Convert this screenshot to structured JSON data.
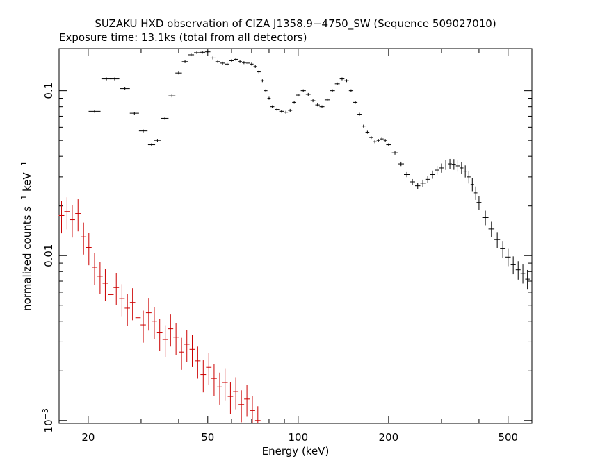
{
  "chart_data": {
    "type": "scatter",
    "title": "SUZAKU HXD observation of CIZA J1358.9−4750_SW (Sequence 509027010)",
    "subtitle": "Exposure time: 13.1ks (total from all detectors)",
    "xlabel": "Energy (keV)",
    "ylabel_parts": [
      "normalized counts s",
      "−1",
      " keV",
      "−1"
    ],
    "x_scale": "log",
    "y_scale": "log",
    "xlim": [
      16,
      600
    ],
    "ylim": [
      0.00096,
      0.18
    ],
    "x_ticks": [
      20,
      50,
      100,
      200,
      500
    ],
    "x_tick_labels": [
      "20",
      "50",
      "100",
      "200",
      "500"
    ],
    "y_ticks": [
      0.001,
      0.01,
      0.1
    ],
    "y_tick_labels": [
      {
        "base": "10",
        "exp": "−3"
      },
      {
        "base": "0.01",
        "exp": ""
      },
      {
        "base": "0.1",
        "exp": ""
      }
    ],
    "grid": false,
    "series": [
      {
        "color": "#000000",
        "x": [
          21,
          23,
          24.5,
          26.5,
          28.5,
          30.5,
          32.5,
          34,
          36,
          38,
          40,
          42,
          44,
          46,
          48,
          50,
          52,
          54,
          56,
          58,
          60,
          62,
          64,
          66,
          68,
          70,
          72,
          74,
          76,
          78,
          80,
          82,
          85,
          88,
          91,
          94,
          97,
          100,
          104,
          108,
          112,
          116,
          120,
          125,
          130,
          135,
          140,
          145,
          150,
          155,
          160,
          165,
          170,
          175,
          180,
          185,
          190,
          195,
          200,
          210,
          220,
          230,
          240,
          250,
          260,
          270,
          280,
          290,
          300,
          310,
          320,
          330,
          340,
          350,
          360,
          370,
          380,
          390,
          400,
          420,
          440,
          460,
          480,
          500,
          520,
          540,
          560,
          580
        ],
        "y": [
          0.075,
          0.118,
          0.118,
          0.103,
          0.073,
          0.057,
          0.047,
          0.05,
          0.068,
          0.093,
          0.128,
          0.15,
          0.165,
          0.17,
          0.171,
          0.172,
          0.158,
          0.15,
          0.147,
          0.145,
          0.152,
          0.155,
          0.15,
          0.148,
          0.147,
          0.145,
          0.14,
          0.13,
          0.115,
          0.1,
          0.09,
          0.08,
          0.077,
          0.075,
          0.074,
          0.076,
          0.085,
          0.094,
          0.1,
          0.095,
          0.087,
          0.082,
          0.08,
          0.088,
          0.1,
          0.11,
          0.118,
          0.115,
          0.1,
          0.085,
          0.072,
          0.061,
          0.056,
          0.052,
          0.049,
          0.05,
          0.051,
          0.05,
          0.047,
          0.042,
          0.036,
          0.031,
          0.028,
          0.0265,
          0.0275,
          0.029,
          0.031,
          0.033,
          0.034,
          0.0355,
          0.036,
          0.0358,
          0.035,
          0.034,
          0.0325,
          0.03,
          0.027,
          0.024,
          0.021,
          0.017,
          0.0145,
          0.0125,
          0.011,
          0.0098,
          0.0088,
          0.0082,
          0.0078,
          0.0072
        ]
      },
      {
        "color": "#cc0000",
        "x": [
          16.3,
          17,
          17.7,
          18.5,
          19.3,
          20.1,
          21,
          21.9,
          22.8,
          23.8,
          24.8,
          25.9,
          27,
          28.1,
          29.3,
          30.5,
          31.8,
          33.2,
          34.6,
          36.1,
          37.6,
          39.2,
          40.9,
          42.6,
          44.4,
          46.3,
          48.3,
          50.4,
          52.5,
          54.8,
          57.1,
          59.5,
          62,
          64.7,
          67.5,
          70.4,
          73.4
        ],
        "y": [
          0.0175,
          0.0185,
          0.0165,
          0.018,
          0.013,
          0.0112,
          0.0085,
          0.0075,
          0.0068,
          0.0058,
          0.0064,
          0.0055,
          0.0048,
          0.0052,
          0.0042,
          0.0038,
          0.0045,
          0.004,
          0.0034,
          0.0031,
          0.0036,
          0.0032,
          0.0026,
          0.0029,
          0.0027,
          0.0023,
          0.0019,
          0.0021,
          0.0018,
          0.0016,
          0.0017,
          0.0014,
          0.0015,
          0.00125,
          0.00135,
          0.00115,
          0.001
        ]
      }
    ]
  }
}
